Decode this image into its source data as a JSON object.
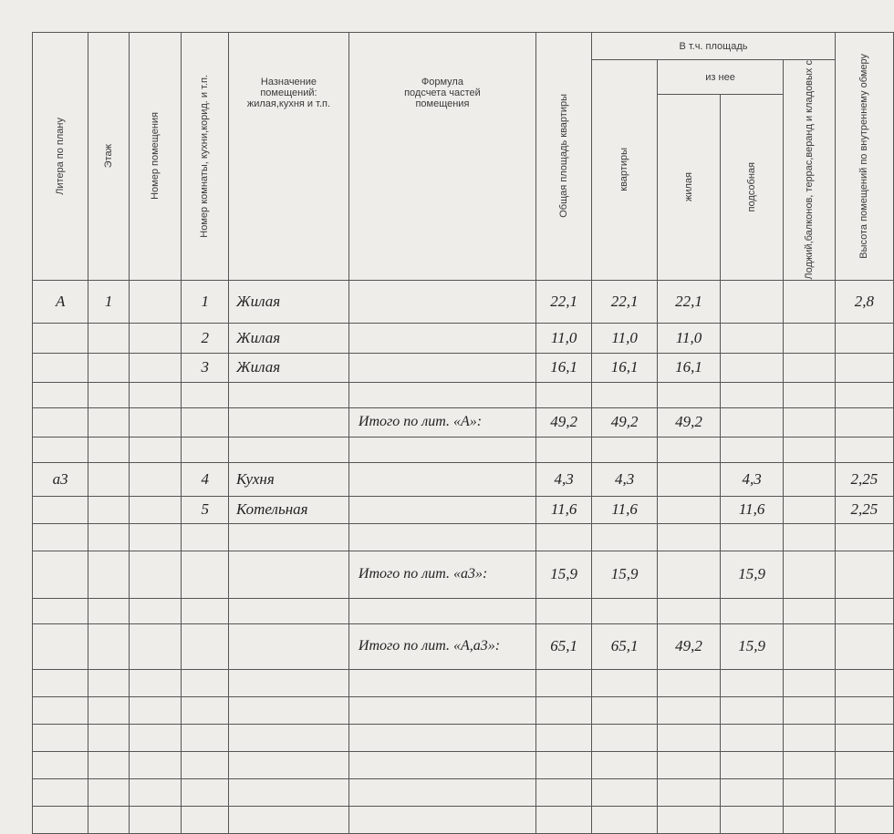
{
  "header": {
    "litera": "Литера по плану",
    "floor": "Этаж",
    "premises_no": "Номер помещения",
    "room_no": "Номер комнаты, кухни,корид. и т.п.",
    "purpose": "Назначение помещений: жилая,кухня и т.п.",
    "formula": "Формула подсчета частей помещения",
    "total_area": "Общая площадь квартиры",
    "incl_area": "В т.ч. площадь",
    "apartment": "квартиры",
    "of_which": "из нее",
    "living": "жилая",
    "auxiliary": "подсобная",
    "loggias": "Лоджий,балконов, террас,веранд и кладовых с",
    "height": "Высота помещений по внутреннему обмеру"
  },
  "rows": [
    {
      "litera": "А",
      "floor": "1",
      "prem": "",
      "room": "1",
      "purpose": "Жилая",
      "formula": "",
      "total": "22,1",
      "apt": "22,1",
      "living": "22,1",
      "aux": "",
      "loggia": "",
      "height": "2,8"
    },
    {
      "litera": "",
      "floor": "",
      "prem": "",
      "room": "2",
      "purpose": "Жилая",
      "formula": "",
      "total": "11,0",
      "apt": "11,0",
      "living": "11,0",
      "aux": "",
      "loggia": "",
      "height": ""
    },
    {
      "litera": "",
      "floor": "",
      "prem": "",
      "room": "3",
      "purpose": "Жилая",
      "formula": "",
      "total": "16,1",
      "apt": "16,1",
      "living": "16,1",
      "aux": "",
      "loggia": "",
      "height": ""
    },
    {
      "litera": "",
      "floor": "",
      "prem": "",
      "room": "",
      "purpose": "",
      "formula": "",
      "total": "",
      "apt": "",
      "living": "",
      "aux": "",
      "loggia": "",
      "height": ""
    },
    {
      "litera": "",
      "floor": "",
      "prem": "",
      "room": "",
      "purpose": "",
      "formula": "Итого по лит. «А»:",
      "total": "49,2",
      "apt": "49,2",
      "living": "49,2",
      "aux": "",
      "loggia": "",
      "height": ""
    },
    {
      "litera": "",
      "floor": "",
      "prem": "",
      "room": "",
      "purpose": "",
      "formula": "",
      "total": "",
      "apt": "",
      "living": "",
      "aux": "",
      "loggia": "",
      "height": ""
    },
    {
      "litera": "а3",
      "floor": "",
      "prem": "",
      "room": "4",
      "purpose": "Кухня",
      "formula": "",
      "total": "4,3",
      "apt": "4,3",
      "living": "",
      "aux": "4,3",
      "loggia": "",
      "height": "2,25"
    },
    {
      "litera": "",
      "floor": "",
      "prem": "",
      "room": "5",
      "purpose": "Котельная",
      "formula": "",
      "total": "11,6",
      "apt": "11,6",
      "living": "",
      "aux": "11,6",
      "loggia": "",
      "height": "2,25"
    },
    {
      "litera": "",
      "floor": "",
      "prem": "",
      "room": "",
      "purpose": "",
      "formula": "",
      "total": "",
      "apt": "",
      "living": "",
      "aux": "",
      "loggia": "",
      "height": ""
    },
    {
      "litera": "",
      "floor": "",
      "prem": "",
      "room": "",
      "purpose": "",
      "formula": "Итого по лит. «а3»:",
      "total": "15,9",
      "apt": "15,9",
      "living": "",
      "aux": "15,9",
      "loggia": "",
      "height": ""
    },
    {
      "litera": "",
      "floor": "",
      "prem": "",
      "room": "",
      "purpose": "",
      "formula": "",
      "total": "",
      "apt": "",
      "living": "",
      "aux": "",
      "loggia": "",
      "height": ""
    },
    {
      "litera": "",
      "floor": "",
      "prem": "",
      "room": "",
      "purpose": "",
      "formula": "Итого по лит. «А,а3»:",
      "total": "65,1",
      "apt": "65,1",
      "living": "49,2",
      "aux": "15,9",
      "loggia": "",
      "height": ""
    },
    {
      "litera": "",
      "floor": "",
      "prem": "",
      "room": "",
      "purpose": "",
      "formula": "",
      "total": "",
      "apt": "",
      "living": "",
      "aux": "",
      "loggia": "",
      "height": ""
    },
    {
      "litera": "",
      "floor": "",
      "prem": "",
      "room": "",
      "purpose": "",
      "formula": "",
      "total": "",
      "apt": "",
      "living": "",
      "aux": "",
      "loggia": "",
      "height": ""
    },
    {
      "litera": "",
      "floor": "",
      "prem": "",
      "room": "",
      "purpose": "",
      "formula": "",
      "total": "",
      "apt": "",
      "living": "",
      "aux": "",
      "loggia": "",
      "height": ""
    },
    {
      "litera": "",
      "floor": "",
      "prem": "",
      "room": "",
      "purpose": "",
      "formula": "",
      "total": "",
      "apt": "",
      "living": "",
      "aux": "",
      "loggia": "",
      "height": ""
    },
    {
      "litera": "",
      "floor": "",
      "prem": "",
      "room": "",
      "purpose": "",
      "formula": "",
      "total": "",
      "apt": "",
      "living": "",
      "aux": "",
      "loggia": "",
      "height": ""
    },
    {
      "litera": "",
      "floor": "",
      "prem": "",
      "room": "",
      "purpose": "",
      "formula": "",
      "total": "",
      "apt": "",
      "living": "",
      "aux": "",
      "loggia": "",
      "height": ""
    }
  ]
}
